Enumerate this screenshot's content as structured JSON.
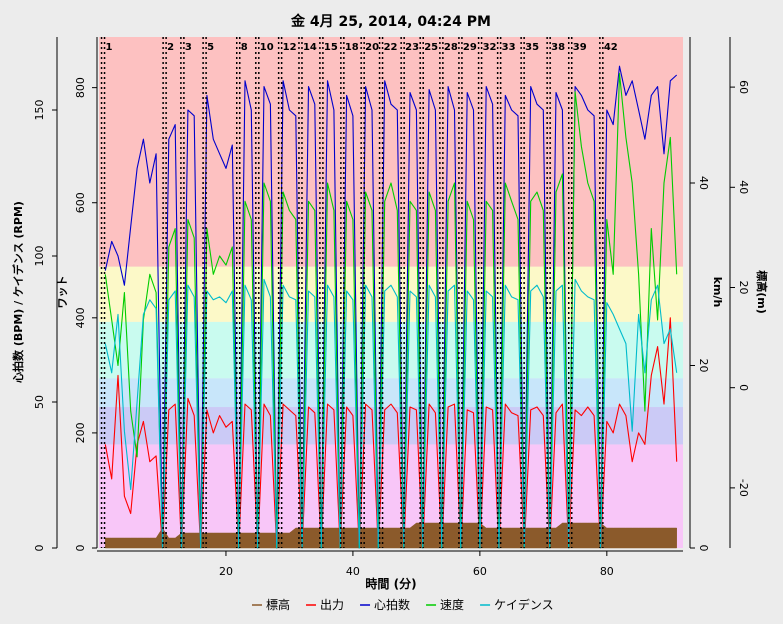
{
  "chart_data": {
    "type": "line",
    "title": "金 4月 25, 2014, 04:24 PM",
    "xlabel": "時間 (分)",
    "ylabel": "心拍数 (BPM) / ケイデンス (RPM)",
    "y2label": "ワット",
    "y3label": "km/h",
    "y4label": "標高(m)",
    "xlim": [
      0,
      92
    ],
    "xticks": [
      20,
      40,
      60,
      80
    ],
    "ylim": [
      0,
      175
    ],
    "yticks": [
      0,
      50,
      100,
      150
    ],
    "y2lim": [
      0,
      888
    ],
    "y2ticks": [
      0,
      200,
      400,
      600,
      800
    ],
    "y3lim": [
      0,
      56
    ],
    "y3ticks": [
      0,
      20,
      40
    ],
    "y4lim": [
      -32,
      70
    ],
    "y4ticks": [
      -20,
      0,
      20,
      40,
      60
    ],
    "zones": [
      {
        "from": 0,
        "to": 180,
        "color": "#f8c6f8"
      },
      {
        "from": 180,
        "to": 245,
        "color": "#cbcaf6"
      },
      {
        "from": 245,
        "to": 295,
        "color": "#c8e6fa"
      },
      {
        "from": 295,
        "to": 393,
        "color": "#c9fbef"
      },
      {
        "from": 393,
        "to": 489,
        "color": "#fcf9c8"
      },
      {
        "from": 489,
        "to": 888,
        "color": "#fdc1c1"
      }
    ],
    "markers": [
      {
        "label": "1",
        "x": 0.4
      },
      {
        "label": "2",
        "x": 10.1
      },
      {
        "label": "3",
        "x": 12.9
      },
      {
        "label": "5",
        "x": 16.4
      },
      {
        "label": "8",
        "x": 21.7
      },
      {
        "label": "10",
        "x": 24.7
      },
      {
        "label": "12",
        "x": 28.3
      },
      {
        "label": "14",
        "x": 31.5
      },
      {
        "label": "15",
        "x": 34.8
      },
      {
        "label": "18",
        "x": 38.1
      },
      {
        "label": "20",
        "x": 41.3
      },
      {
        "label": "22",
        "x": 44.2
      },
      {
        "label": "23",
        "x": 47.6
      },
      {
        "label": "25",
        "x": 50.6
      },
      {
        "label": "28",
        "x": 53.7
      },
      {
        "label": "29",
        "x": 56.7
      },
      {
        "label": "32",
        "x": 59.8
      },
      {
        "label": "33",
        "x": 62.8
      },
      {
        "label": "35",
        "x": 66.5
      },
      {
        "label": "38",
        "x": 70.6
      },
      {
        "label": "39",
        "x": 74.0
      },
      {
        "label": "42",
        "x": 78.9
      }
    ],
    "x": [
      1,
      2,
      3,
      4,
      5,
      6,
      7,
      8,
      9,
      10,
      11,
      12,
      13,
      14,
      15,
      16,
      17,
      18,
      19,
      20,
      21,
      22,
      23,
      24,
      25,
      26,
      27,
      28,
      29,
      30,
      31,
      32,
      33,
      34,
      35,
      36,
      37,
      38,
      39,
      40,
      41,
      42,
      43,
      44,
      45,
      46,
      47,
      48,
      49,
      50,
      51,
      52,
      53,
      54,
      55,
      56,
      57,
      58,
      59,
      60,
      61,
      62,
      63,
      64,
      65,
      66,
      67,
      68,
      69,
      70,
      71,
      72,
      73,
      74,
      75,
      76,
      77,
      78,
      79,
      80,
      81,
      82,
      83,
      84,
      85,
      86,
      87,
      88,
      89,
      90,
      91
    ],
    "series": [
      {
        "name": "標高",
        "color": "#8b5a2b",
        "axis": "y4",
        "area": true,
        "values": [
          -30,
          -30,
          -30,
          -30,
          -30,
          -30,
          -30,
          -30,
          -30,
          -28,
          -30,
          -30,
          -29,
          -29,
          -29,
          -29,
          -29,
          -29,
          -29,
          -29,
          -29,
          -29,
          -29,
          -29,
          -29,
          -29,
          -29,
          -29,
          -29,
          -29,
          -28,
          -28,
          -28,
          -28,
          -28,
          -28,
          -28,
          -28,
          -28,
          -28,
          -28,
          -28,
          -28,
          -28,
          -28,
          -28,
          -28,
          -28,
          -28,
          -27,
          -27,
          -27,
          -27,
          -27,
          -27,
          -27,
          -27,
          -27,
          -27,
          -27,
          -28,
          -28,
          -28,
          -28,
          -28,
          -28,
          -28,
          -28,
          -28,
          -28,
          -28,
          -28,
          -27,
          -27,
          -27,
          -27,
          -27,
          -27,
          -27,
          -28,
          -28,
          -28,
          -28,
          -28,
          -28,
          -28,
          -28,
          -28,
          -28,
          -28,
          -28
        ]
      },
      {
        "name": "出力",
        "color": "#ff0000",
        "axis": "y2",
        "values": [
          180,
          120,
          300,
          90,
          60,
          180,
          220,
          150,
          160,
          0,
          240,
          250,
          0,
          260,
          230,
          0,
          240,
          200,
          230,
          210,
          220,
          0,
          250,
          240,
          0,
          250,
          230,
          0,
          250,
          240,
          230,
          0,
          245,
          235,
          0,
          250,
          240,
          0,
          245,
          230,
          0,
          250,
          240,
          0,
          240,
          250,
          235,
          0,
          245,
          240,
          0,
          250,
          235,
          0,
          245,
          250,
          0,
          240,
          235,
          0,
          245,
          240,
          0,
          250,
          235,
          230,
          0,
          240,
          245,
          230,
          0,
          235,
          250,
          0,
          240,
          230,
          245,
          230,
          0,
          220,
          200,
          250,
          230,
          150,
          200,
          180,
          300,
          350,
          250,
          400,
          150
        ]
      },
      {
        "name": "心拍数",
        "color": "#0000cc",
        "axis": "y",
        "values": [
          95,
          105,
          100,
          90,
          110,
          130,
          140,
          125,
          135,
          0,
          140,
          145,
          0,
          150,
          148,
          0,
          155,
          140,
          135,
          130,
          138,
          0,
          160,
          150,
          0,
          158,
          152,
          0,
          160,
          150,
          148,
          0,
          158,
          152,
          0,
          160,
          150,
          0,
          155,
          148,
          0,
          158,
          150,
          0,
          160,
          152,
          150,
          0,
          156,
          150,
          0,
          157,
          150,
          0,
          158,
          150,
          0,
          156,
          150,
          0,
          158,
          152,
          0,
          155,
          150,
          148,
          0,
          158,
          152,
          150,
          0,
          156,
          150,
          0,
          158,
          155,
          150,
          148,
          0,
          150,
          145,
          165,
          155,
          160,
          150,
          140,
          155,
          158,
          135,
          160,
          162
        ]
      },
      {
        "name": "速度",
        "color": "#00cc00",
        "axis": "y3",
        "values": [
          30,
          25,
          20,
          28,
          15,
          10,
          25,
          30,
          28,
          0,
          33,
          35,
          0,
          36,
          34,
          0,
          35,
          30,
          32,
          31,
          33,
          0,
          38,
          36,
          0,
          40,
          38,
          0,
          39,
          37,
          36,
          0,
          38,
          37,
          0,
          40,
          37,
          0,
          38,
          36,
          0,
          39,
          37,
          0,
          38,
          40,
          37,
          0,
          38,
          37,
          0,
          39,
          37,
          0,
          38,
          40,
          0,
          38,
          36,
          0,
          38,
          37,
          0,
          40,
          38,
          36,
          0,
          38,
          39,
          37,
          0,
          39,
          41,
          0,
          50,
          44,
          40,
          38,
          0,
          36,
          30,
          52,
          45,
          40,
          30,
          15,
          35,
          25,
          40,
          45,
          30
        ]
      },
      {
        "name": "ケイデンス",
        "color": "#00bbcc",
        "axis": "y",
        "values": [
          70,
          60,
          80,
          40,
          20,
          50,
          80,
          85,
          82,
          0,
          85,
          88,
          0,
          90,
          86,
          0,
          88,
          85,
          86,
          84,
          88,
          0,
          90,
          85,
          0,
          92,
          86,
          0,
          90,
          86,
          85,
          0,
          88,
          86,
          0,
          90,
          86,
          0,
          88,
          85,
          0,
          90,
          86,
          0,
          88,
          90,
          86,
          0,
          88,
          86,
          0,
          90,
          86,
          0,
          88,
          90,
          0,
          88,
          85,
          0,
          88,
          86,
          0,
          90,
          86,
          85,
          0,
          88,
          90,
          86,
          0,
          88,
          90,
          0,
          92,
          88,
          86,
          85,
          0,
          84,
          80,
          75,
          70,
          40,
          80,
          60,
          85,
          90,
          70,
          75,
          60
        ]
      }
    ]
  }
}
